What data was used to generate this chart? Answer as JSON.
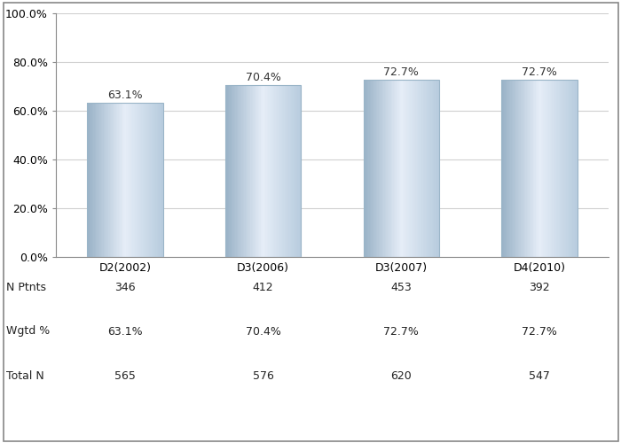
{
  "categories": [
    "D2(2002)",
    "D3(2006)",
    "D3(2007)",
    "D4(2010)"
  ],
  "values": [
    63.1,
    70.4,
    72.7,
    72.7
  ],
  "labels": [
    "63.1%",
    "70.4%",
    "72.7%",
    "72.7%"
  ],
  "n_ptnts": [
    346,
    412,
    453,
    392
  ],
  "wgtd_pct": [
    "63.1%",
    "70.4%",
    "72.7%",
    "72.7%"
  ],
  "total_n": [
    565,
    576,
    620,
    547
  ],
  "ylim": [
    0,
    100
  ],
  "yticks": [
    0,
    20,
    40,
    60,
    80,
    100
  ],
  "ytick_labels": [
    "0.0%",
    "20.0%",
    "40.0%",
    "60.0%",
    "80.0%",
    "100.0%"
  ],
  "background_color": "#ffffff",
  "plot_bg_color": "#ffffff",
  "grid_color": "#d0d0d0",
  "table_row_labels": [
    "N Ptnts",
    "Wgtd %",
    "Total N"
  ],
  "label_fontsize": 9,
  "tick_fontsize": 9,
  "table_fontsize": 9
}
